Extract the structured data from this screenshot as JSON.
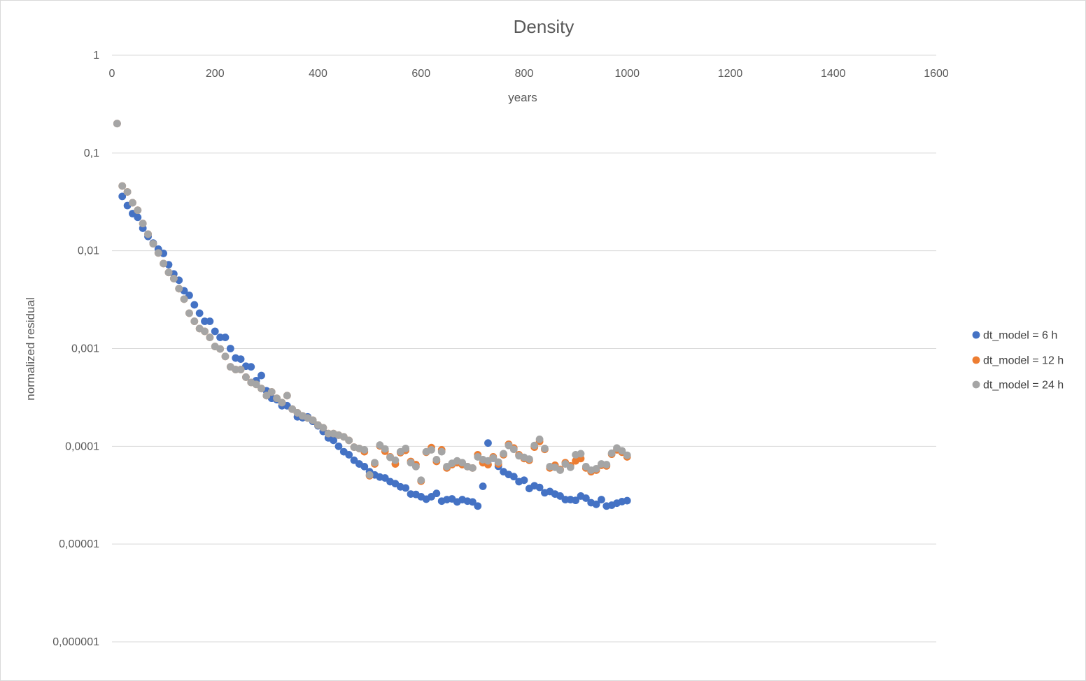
{
  "chart_data": {
    "type": "scatter",
    "title": "Density",
    "xlabel": "years",
    "ylabel": "normalized residual",
    "xlim": [
      0,
      1600
    ],
    "ylim": [
      1e-06,
      1
    ],
    "yscale": "log",
    "x_ticks": [
      "0",
      "200",
      "400",
      "600",
      "800",
      "1000",
      "1200",
      "1400",
      "1600"
    ],
    "y_ticks": [
      "1",
      "0,1",
      "0,01",
      "0,001",
      "0,0001",
      "0,00001",
      "0,000001"
    ],
    "x_axis_position": "top",
    "grid": true,
    "legend_position": "right",
    "series": [
      {
        "name": "dt_model = 6 h",
        "color": "#4472c4",
        "points": [
          [
            10,
            0.2
          ],
          [
            20,
            0.036
          ],
          [
            30,
            0.029
          ],
          [
            40,
            0.024
          ],
          [
            50,
            0.022
          ],
          [
            60,
            0.017
          ],
          [
            70,
            0.014
          ],
          [
            80,
            0.012
          ],
          [
            90,
            0.0104
          ],
          [
            100,
            0.0094
          ],
          [
            110,
            0.0072
          ],
          [
            120,
            0.0058
          ],
          [
            130,
            0.005
          ],
          [
            140,
            0.0039
          ],
          [
            150,
            0.0035
          ],
          [
            160,
            0.0028
          ],
          [
            170,
            0.0023
          ],
          [
            180,
            0.0019
          ],
          [
            190,
            0.0019
          ],
          [
            200,
            0.0015
          ],
          [
            210,
            0.0013
          ],
          [
            220,
            0.0013
          ],
          [
            230,
            0.001
          ],
          [
            240,
            0.0008
          ],
          [
            250,
            0.00078
          ],
          [
            260,
            0.00066
          ],
          [
            270,
            0.00065
          ],
          [
            280,
            0.00047
          ],
          [
            290,
            0.00053
          ],
          [
            300,
            0.00037
          ],
          [
            310,
            0.00031
          ],
          [
            320,
            0.0003
          ],
          [
            330,
            0.00026
          ],
          [
            340,
            0.00026
          ],
          [
            350,
            0.00024
          ],
          [
            360,
            0.0002
          ],
          [
            370,
            0.000196
          ],
          [
            380,
            0.0002
          ],
          [
            390,
            0.00018
          ],
          [
            400,
            0.000162
          ],
          [
            410,
            0.000142
          ],
          [
            420,
            0.000122
          ],
          [
            430,
            0.000115
          ],
          [
            440,
            0.0001
          ],
          [
            450,
            8.8e-05
          ],
          [
            460,
            8.2e-05
          ],
          [
            470,
            7.2e-05
          ],
          [
            480,
            6.6e-05
          ],
          [
            490,
            6.2e-05
          ],
          [
            500,
            5.5e-05
          ],
          [
            510,
            5.1e-05
          ],
          [
            520,
            4.85e-05
          ],
          [
            530,
            4.75e-05
          ],
          [
            540,
            4.35e-05
          ],
          [
            550,
            4.15e-05
          ],
          [
            560,
            3.85e-05
          ],
          [
            570,
            3.75e-05
          ],
          [
            580,
            3.25e-05
          ],
          [
            590,
            3.22e-05
          ],
          [
            600,
            3.05e-05
          ],
          [
            610,
            2.88e-05
          ],
          [
            620,
            3.05e-05
          ],
          [
            630,
            3.3e-05
          ],
          [
            640,
            2.75e-05
          ],
          [
            650,
            2.85e-05
          ],
          [
            660,
            2.9e-05
          ],
          [
            670,
            2.7e-05
          ],
          [
            680,
            2.85e-05
          ],
          [
            690,
            2.75e-05
          ],
          [
            700,
            2.7e-05
          ],
          [
            710,
            2.45e-05
          ],
          [
            720,
            3.9e-05
          ],
          [
            730,
            0.000108
          ],
          [
            740,
            7.55e-05
          ],
          [
            750,
            6.25e-05
          ],
          [
            760,
            5.5e-05
          ],
          [
            770,
            5.15e-05
          ],
          [
            780,
            4.9e-05
          ],
          [
            790,
            4.35e-05
          ],
          [
            800,
            4.5e-05
          ],
          [
            810,
            3.7e-05
          ],
          [
            820,
            3.95e-05
          ],
          [
            830,
            3.8e-05
          ],
          [
            840,
            3.35e-05
          ],
          [
            850,
            3.45e-05
          ],
          [
            860,
            3.25e-05
          ],
          [
            870,
            3.1e-05
          ],
          [
            880,
            2.85e-05
          ],
          [
            890,
            2.85e-05
          ],
          [
            900,
            2.8e-05
          ],
          [
            910,
            3.1e-05
          ],
          [
            920,
            2.95e-05
          ],
          [
            930,
            2.65e-05
          ],
          [
            940,
            2.55e-05
          ],
          [
            950,
            2.85e-05
          ],
          [
            960,
            2.45e-05
          ],
          [
            970,
            2.5e-05
          ],
          [
            980,
            2.62e-05
          ],
          [
            990,
            2.72e-05
          ],
          [
            1000,
            2.78e-05
          ]
        ]
      },
      {
        "name": "dt_model = 12 h",
        "color": "#ed7d31",
        "points": [
          [
            10,
            0.2
          ],
          [
            20,
            0.046
          ],
          [
            30,
            0.04
          ],
          [
            40,
            0.031
          ],
          [
            50,
            0.026
          ],
          [
            60,
            0.019
          ],
          [
            70,
            0.0148
          ],
          [
            80,
            0.0118
          ],
          [
            90,
            0.0095
          ],
          [
            100,
            0.0074
          ],
          [
            110,
            0.006
          ],
          [
            120,
            0.0052
          ],
          [
            130,
            0.0041
          ],
          [
            140,
            0.0032
          ],
          [
            150,
            0.0023
          ],
          [
            160,
            0.0019
          ],
          [
            170,
            0.0016
          ],
          [
            180,
            0.0015
          ],
          [
            190,
            0.0013
          ],
          [
            200,
            0.00105
          ],
          [
            210,
            0.00099
          ],
          [
            220,
            0.00083
          ],
          [
            230,
            0.00065
          ],
          [
            240,
            0.00061
          ],
          [
            250,
            0.00061
          ],
          [
            260,
            0.00051
          ],
          [
            270,
            0.00045
          ],
          [
            280,
            0.00043
          ],
          [
            290,
            0.00039
          ],
          [
            300,
            0.00033
          ],
          [
            310,
            0.00036
          ],
          [
            320,
            0.00031
          ],
          [
            330,
            0.00028
          ],
          [
            340,
            0.00033
          ],
          [
            350,
            0.00024
          ],
          [
            360,
            0.00022
          ],
          [
            370,
            0.000205
          ],
          [
            380,
            0.000195
          ],
          [
            390,
            0.000185
          ],
          [
            400,
            0.000165
          ],
          [
            410,
            0.000155
          ],
          [
            420,
            0.000135
          ],
          [
            430,
            0.000135
          ],
          [
            440,
            0.00013
          ],
          [
            450,
            0.000125
          ],
          [
            460,
            0.000115
          ],
          [
            470,
            9.8e-05
          ],
          [
            480,
            9.5e-05
          ],
          [
            490,
            8.8e-05
          ],
          [
            500,
            5e-05
          ],
          [
            510,
            6.6e-05
          ],
          [
            520,
            0.000101
          ],
          [
            530,
            8.9e-05
          ],
          [
            540,
            7.8e-05
          ],
          [
            550,
            6.6e-05
          ],
          [
            560,
            8.6e-05
          ],
          [
            570,
            9.1e-05
          ],
          [
            580,
            7e-05
          ],
          [
            590,
            6.5e-05
          ],
          [
            600,
            4.4e-05
          ],
          [
            610,
            8.7e-05
          ],
          [
            620,
            9.7e-05
          ],
          [
            630,
            7e-05
          ],
          [
            640,
            9.2e-05
          ],
          [
            650,
            6e-05
          ],
          [
            660,
            6.5e-05
          ],
          [
            670,
            6.8e-05
          ],
          [
            680,
            6.5e-05
          ],
          [
            690,
            6.2e-05
          ],
          [
            700,
            6e-05
          ],
          [
            710,
            8.2e-05
          ],
          [
            720,
            6.8e-05
          ],
          [
            730,
            6.5e-05
          ],
          [
            740,
            7.8e-05
          ],
          [
            750,
            6.6e-05
          ],
          [
            760,
            8.2e-05
          ],
          [
            770,
            0.000105
          ],
          [
            780,
            9.6e-05
          ],
          [
            790,
            8.2e-05
          ],
          [
            800,
            7.5e-05
          ],
          [
            810,
            7.2e-05
          ],
          [
            820,
            9.8e-05
          ],
          [
            830,
            0.000112
          ],
          [
            840,
            9.3e-05
          ],
          [
            850,
            6e-05
          ],
          [
            860,
            6.4e-05
          ],
          [
            870,
            5.8e-05
          ],
          [
            880,
            6.8e-05
          ],
          [
            890,
            6.3e-05
          ],
          [
            900,
            7.1e-05
          ],
          [
            910,
            7.5e-05
          ],
          [
            920,
            6e-05
          ],
          [
            930,
            5.5e-05
          ],
          [
            940,
            5.7e-05
          ],
          [
            950,
            6.4e-05
          ],
          [
            960,
            6.3e-05
          ],
          [
            970,
            8.3e-05
          ],
          [
            980,
            9.2e-05
          ],
          [
            990,
            8.7e-05
          ],
          [
            1000,
            7.8e-05
          ]
        ]
      },
      {
        "name": "dt_model = 24 h",
        "color": "#a5a5a5",
        "points": [
          [
            10,
            0.2
          ],
          [
            20,
            0.046
          ],
          [
            30,
            0.04
          ],
          [
            40,
            0.031
          ],
          [
            50,
            0.026
          ],
          [
            60,
            0.019
          ],
          [
            70,
            0.0148
          ],
          [
            80,
            0.0118
          ],
          [
            90,
            0.0095
          ],
          [
            100,
            0.0074
          ],
          [
            110,
            0.006
          ],
          [
            120,
            0.0052
          ],
          [
            130,
            0.0041
          ],
          [
            140,
            0.0032
          ],
          [
            150,
            0.0023
          ],
          [
            160,
            0.0019
          ],
          [
            170,
            0.0016
          ],
          [
            180,
            0.0015
          ],
          [
            190,
            0.0013
          ],
          [
            200,
            0.00105
          ],
          [
            210,
            0.00099
          ],
          [
            220,
            0.00083
          ],
          [
            230,
            0.00065
          ],
          [
            240,
            0.00061
          ],
          [
            250,
            0.00061
          ],
          [
            260,
            0.00051
          ],
          [
            270,
            0.00045
          ],
          [
            280,
            0.00043
          ],
          [
            290,
            0.00039
          ],
          [
            300,
            0.00033
          ],
          [
            310,
            0.00036
          ],
          [
            320,
            0.00031
          ],
          [
            330,
            0.00028
          ],
          [
            340,
            0.00033
          ],
          [
            350,
            0.00024
          ],
          [
            360,
            0.00022
          ],
          [
            370,
            0.000205
          ],
          [
            380,
            0.000195
          ],
          [
            390,
            0.000185
          ],
          [
            400,
            0.000165
          ],
          [
            410,
            0.000155
          ],
          [
            420,
            0.000135
          ],
          [
            430,
            0.000135
          ],
          [
            440,
            0.00013
          ],
          [
            450,
            0.000125
          ],
          [
            460,
            0.000115
          ],
          [
            470,
            9.8e-05
          ],
          [
            480,
            9.5e-05
          ],
          [
            490,
            9.2e-05
          ],
          [
            500,
            5.1e-05
          ],
          [
            510,
            6.8e-05
          ],
          [
            520,
            0.000103
          ],
          [
            530,
            9.4e-05
          ],
          [
            540,
            7.7e-05
          ],
          [
            550,
            7.2e-05
          ],
          [
            560,
            8.8e-05
          ],
          [
            570,
            9.5e-05
          ],
          [
            580,
            6.8e-05
          ],
          [
            590,
            6.2e-05
          ],
          [
            600,
            4.5e-05
          ],
          [
            610,
            8.8e-05
          ],
          [
            620,
            9.2e-05
          ],
          [
            630,
            7.3e-05
          ],
          [
            640,
            8.8e-05
          ],
          [
            650,
            6.2e-05
          ],
          [
            660,
            6.7e-05
          ],
          [
            670,
            7.1e-05
          ],
          [
            680,
            6.8e-05
          ],
          [
            690,
            6.2e-05
          ],
          [
            700,
            6e-05
          ],
          [
            710,
            7.8e-05
          ],
          [
            720,
            7.3e-05
          ],
          [
            730,
            7.1e-05
          ],
          [
            740,
            7.6e-05
          ],
          [
            750,
            6.9e-05
          ],
          [
            760,
            8.4e-05
          ],
          [
            770,
            0.000102
          ],
          [
            780,
            9.3e-05
          ],
          [
            790,
            8e-05
          ],
          [
            800,
            7.7e-05
          ],
          [
            810,
            7.4e-05
          ],
          [
            820,
            0.000102
          ],
          [
            830,
            0.000118
          ],
          [
            840,
            9.5e-05
          ],
          [
            850,
            6.2e-05
          ],
          [
            860,
            6.1e-05
          ],
          [
            870,
            5.7e-05
          ],
          [
            880,
            6.6e-05
          ],
          [
            890,
            6.1e-05
          ],
          [
            900,
            8.2e-05
          ],
          [
            910,
            8.4e-05
          ],
          [
            920,
            6.2e-05
          ],
          [
            930,
            5.7e-05
          ],
          [
            940,
            5.9e-05
          ],
          [
            950,
            6.6e-05
          ],
          [
            960,
            6.5e-05
          ],
          [
            970,
            8.5e-05
          ],
          [
            980,
            9.6e-05
          ],
          [
            990,
            9e-05
          ],
          [
            1000,
            8.1e-05
          ]
        ]
      }
    ]
  }
}
